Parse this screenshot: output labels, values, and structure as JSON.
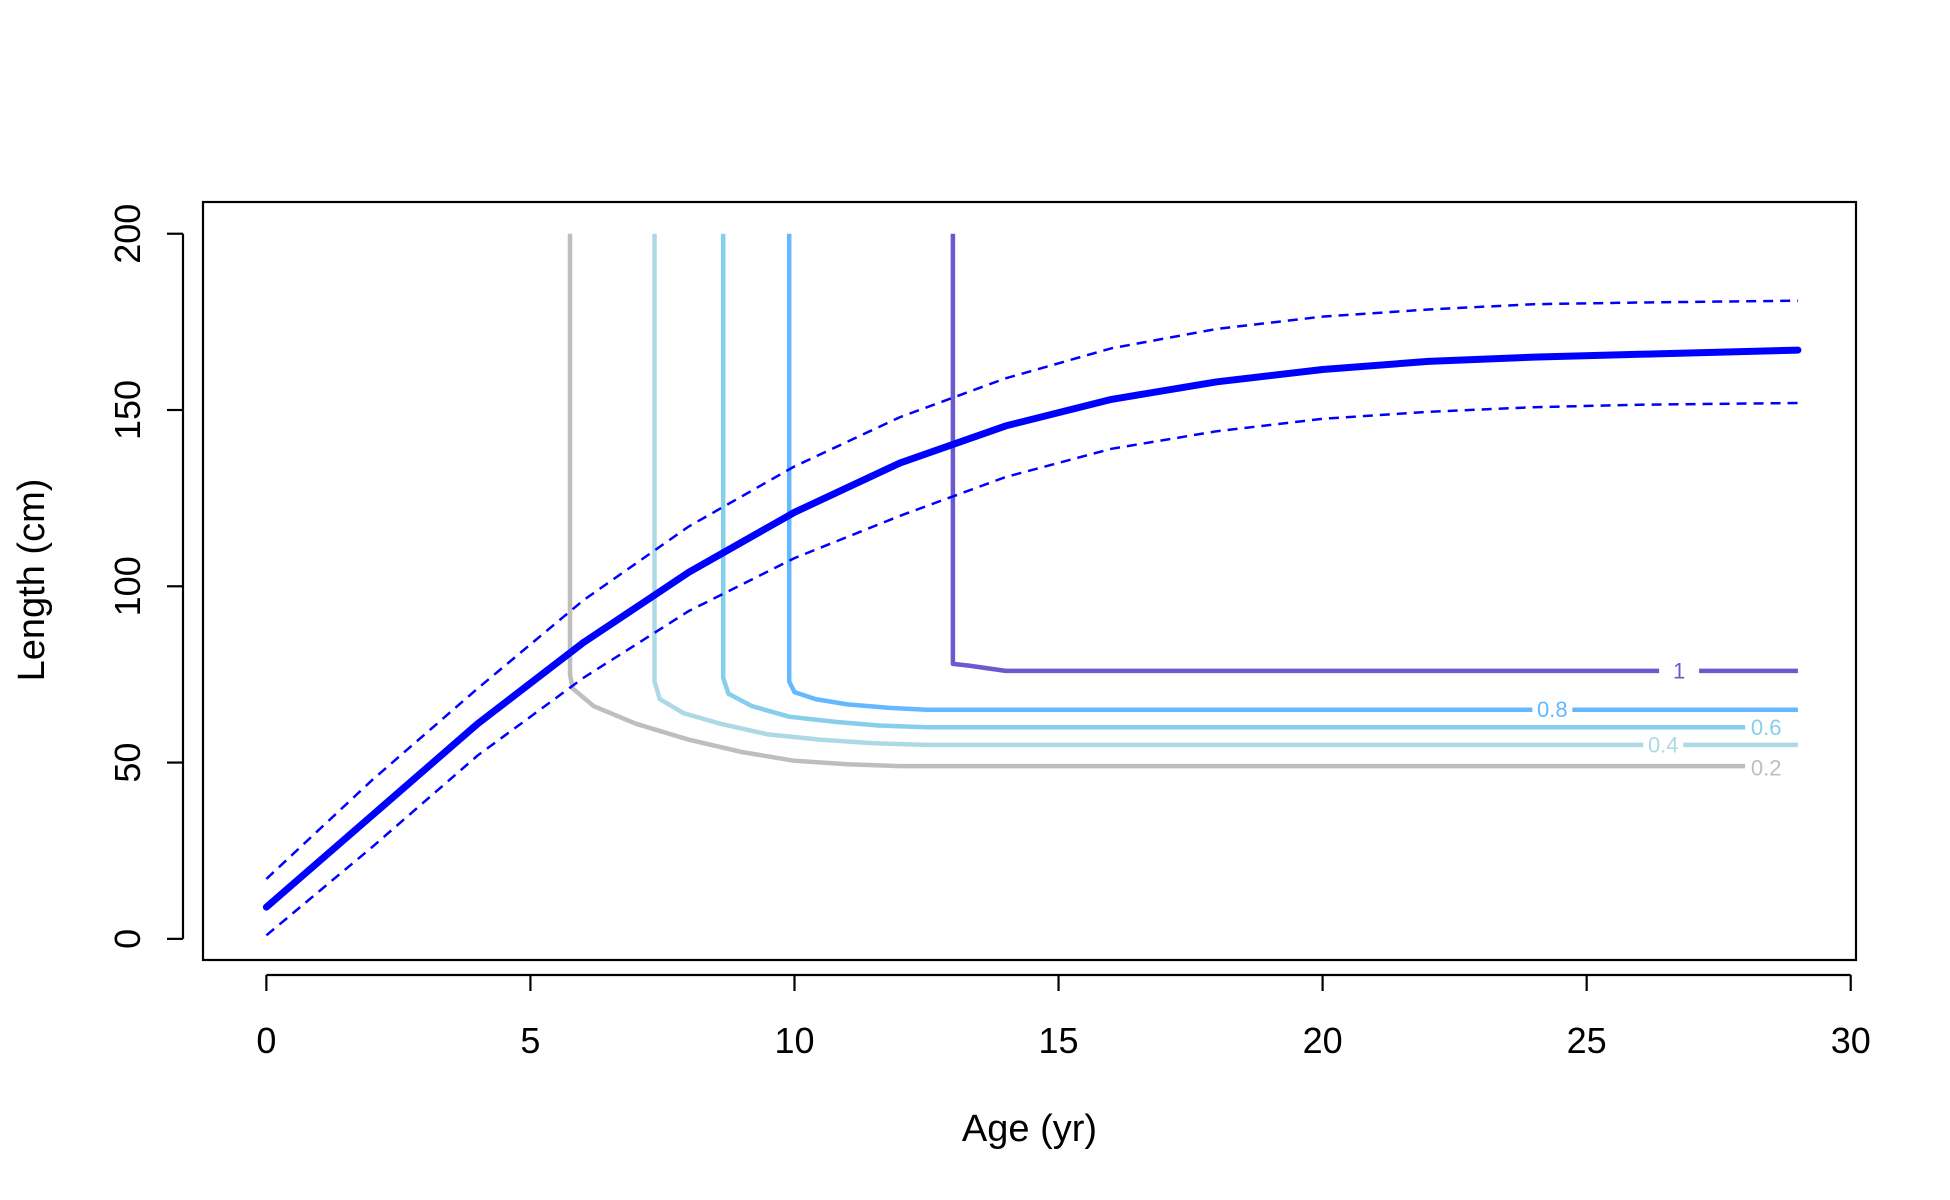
{
  "chart_data": {
    "type": "line",
    "title": "",
    "xlabel": "Age (yr)",
    "ylabel": "Length (cm)",
    "xlim": [
      -1.2,
      30.1
    ],
    "ylim": [
      -6,
      209
    ],
    "xticks": [
      0,
      5,
      10,
      15,
      20,
      25,
      30
    ],
    "yticks": [
      0,
      50,
      100,
      150,
      200
    ],
    "xtick_labels": [
      "0",
      "5",
      "10",
      "15",
      "20",
      "25",
      "30"
    ],
    "ytick_labels": [
      "0",
      "50",
      "100",
      "150",
      "200"
    ],
    "grid": false,
    "legend": "none",
    "growth_curve": {
      "color": "#0000ff",
      "line": "solid-thick",
      "x": [
        0,
        2,
        4,
        6,
        8,
        10,
        12,
        14,
        16,
        18,
        20,
        22,
        24,
        26,
        29
      ],
      "y": [
        9,
        35,
        61,
        84,
        104,
        121,
        135,
        145.5,
        153,
        158,
        161.5,
        163.8,
        165,
        165.8,
        167
      ]
    },
    "upper_bound": {
      "color": "#0000ff",
      "line": "dashed",
      "x": [
        0,
        2,
        4,
        6,
        8,
        10,
        12,
        14,
        16,
        18,
        20,
        22,
        24,
        26,
        29
      ],
      "y": [
        17,
        45,
        71,
        96,
        117,
        134,
        148,
        159,
        167.5,
        173,
        176.5,
        178.5,
        180,
        180.5,
        181
      ]
    },
    "lower_bound": {
      "color": "#0000ff",
      "line": "dashed",
      "x": [
        0,
        2,
        4,
        6,
        8,
        10,
        12,
        14,
        16,
        18,
        20,
        22,
        24,
        26,
        29
      ],
      "y": [
        1,
        26,
        52,
        74,
        93,
        108,
        120,
        131,
        139,
        144,
        147.5,
        149.5,
        150.8,
        151.5,
        152
      ]
    },
    "contours": [
      {
        "level": "0.2",
        "color": "#bebebe",
        "x": [
          5.75,
          5.75,
          5.8,
          6.2,
          7,
          8,
          9,
          10,
          11,
          12,
          28
        ],
        "y": [
          200,
          75,
          71,
          66,
          61,
          56.5,
          53,
          50.5,
          49.5,
          49,
          49
        ],
        "label_x": 28.4,
        "label_y": 48.5
      },
      {
        "level": "0.4",
        "color": "#add8e6",
        "x": [
          7.35,
          7.35,
          7.45,
          7.9,
          8.6,
          9.5,
          10.5,
          11.5,
          12.5,
          29
        ],
        "y": [
          200,
          73,
          68,
          64,
          61,
          58,
          56.5,
          55.5,
          55,
          55
        ],
        "label_x": 26.45,
        "label_y": 55
      },
      {
        "level": "0.6",
        "color": "#87ceeb",
        "x": [
          8.65,
          8.65,
          8.75,
          9.2,
          9.9,
          10.8,
          11.6,
          12.5,
          28
        ],
        "y": [
          200,
          74,
          69.5,
          66,
          63,
          61.5,
          60.5,
          60,
          60
        ],
        "label_x": 28.4,
        "label_y": 60
      },
      {
        "level": "0.8",
        "color": "#63b8ff",
        "x": [
          9.9,
          9.9,
          10,
          10.4,
          11,
          11.8,
          12.5,
          29
        ],
        "y": [
          200,
          73,
          70,
          68,
          66.5,
          65.5,
          65,
          65
        ],
        "label_x": 24.35,
        "label_y": 65
      },
      {
        "level": "1",
        "color": "#6a5acd",
        "x": [
          13,
          13,
          13.3,
          14,
          29
        ],
        "y": [
          200,
          78,
          77.5,
          76,
          76
        ],
        "label_x": 26.75,
        "label_y": 76
      }
    ]
  }
}
